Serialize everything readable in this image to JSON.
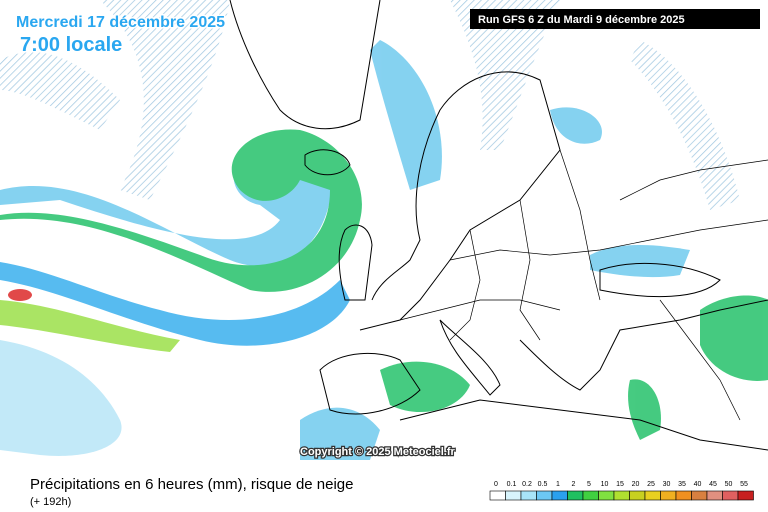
{
  "header": {
    "date": "Mercredi 17 décembre 2025",
    "time": "7:00 locale",
    "run": "Run GFS 6 Z du Mardi 9 décembre 2025"
  },
  "copyright": "Copyright © 2025 Meteociel.fr",
  "footer": {
    "title": "Précipitations en 6 heures (mm), risque de neige",
    "lead_time": "(+ 192h)",
    "scale": [
      {
        "label": "0",
        "color": "#ffffff"
      },
      {
        "label": "0.1",
        "color": "#d8f4fc"
      },
      {
        "label": "0.2",
        "color": "#a8e4f8"
      },
      {
        "label": "0.5",
        "color": "#6cc8f4"
      },
      {
        "label": "1",
        "color": "#2aa0ee"
      },
      {
        "label": "2",
        "color": "#20c060"
      },
      {
        "label": "5",
        "color": "#40d040"
      },
      {
        "label": "10",
        "color": "#80e040"
      },
      {
        "label": "15",
        "color": "#b0e030"
      },
      {
        "label": "20",
        "color": "#c8d020"
      },
      {
        "label": "25",
        "color": "#e8d020"
      },
      {
        "label": "30",
        "color": "#f0b020"
      },
      {
        "label": "35",
        "color": "#f09020"
      },
      {
        "label": "40",
        "color": "#d88040"
      },
      {
        "label": "45",
        "color": "#e09080"
      },
      {
        "label": "50",
        "color": "#e06060"
      },
      {
        "label": "55",
        "color": "#c82020"
      }
    ]
  }
}
